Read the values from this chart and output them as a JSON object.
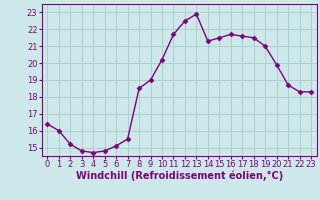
{
  "x": [
    0,
    1,
    2,
    3,
    4,
    5,
    6,
    7,
    8,
    9,
    10,
    11,
    12,
    13,
    14,
    15,
    16,
    17,
    18,
    19,
    20,
    21,
    22,
    23
  ],
  "y": [
    16.4,
    16.0,
    15.2,
    14.8,
    14.7,
    14.8,
    15.1,
    15.5,
    18.5,
    19.0,
    20.2,
    21.7,
    22.5,
    22.9,
    21.3,
    21.5,
    21.7,
    21.6,
    21.5,
    21.0,
    19.9,
    18.7,
    18.3,
    18.3
  ],
  "line_color": "#800080",
  "marker": "D",
  "marker_size": 2.5,
  "xlabel": "Windchill (Refroidissement éolien,°C)",
  "xlabel_fontsize": 7,
  "ylim": [
    14.5,
    23.5
  ],
  "xlim": [
    -0.5,
    23.5
  ],
  "yticks": [
    15,
    16,
    17,
    18,
    19,
    20,
    21,
    22,
    23
  ],
  "xticks": [
    0,
    1,
    2,
    3,
    4,
    5,
    6,
    7,
    8,
    9,
    10,
    11,
    12,
    13,
    14,
    15,
    16,
    17,
    18,
    19,
    20,
    21,
    22,
    23
  ],
  "bg_color": "#cce8e8",
  "grid_color": "#aacccc",
  "tick_label_fontsize": 6,
  "line_width": 1.0
}
